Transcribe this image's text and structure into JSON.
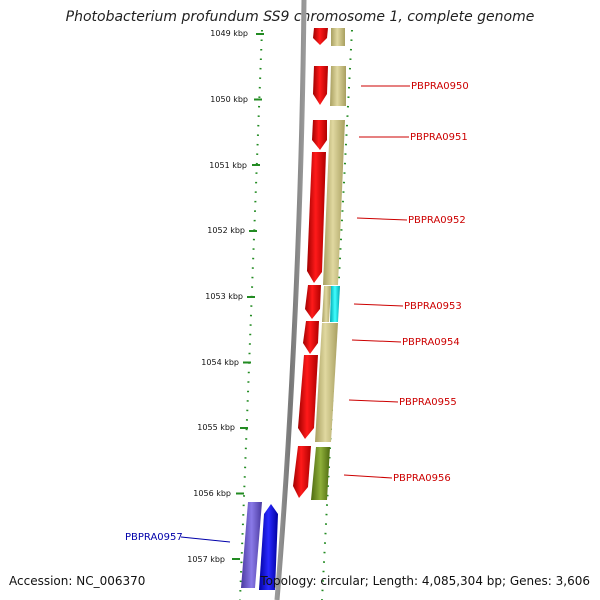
{
  "title": "Photobacterium profundum SS9 chromosome 1, complete genome",
  "footer": {
    "accession": "Accession: NC_006370",
    "summary": "Topology: circular; Length: 4,085,304 bp; Genes: 3,606"
  },
  "ruler": [
    "1049 kbp",
    "1050 kbp",
    "1051 kbp",
    "1052 kbp",
    "1053 kbp",
    "1054 kbp",
    "1055 kbp",
    "1056 kbp",
    "1057 kbp"
  ],
  "gene_labels": [
    {
      "text": "PBPRA0950",
      "color": "#cc0000"
    },
    {
      "text": "PBPRA0951",
      "color": "#cc0000"
    },
    {
      "text": "PBPRA0952",
      "color": "#cc0000"
    },
    {
      "text": "PBPRA0953",
      "color": "#cc0000"
    },
    {
      "text": "PBPRA0954",
      "color": "#cc0000"
    },
    {
      "text": "PBPRA0955",
      "color": "#cc0000"
    },
    {
      "text": "PBPRA0956",
      "color": "#cc0000"
    },
    {
      "text": "PBPRA0957",
      "color": "#0000aa"
    }
  ],
  "colors": {
    "forward_gene": "#ee0000",
    "forward_feature": "#c8bf80",
    "trna_feature": "#00d8e0",
    "green_feature": "#6b8e23",
    "reverse_gene": "#0000ee",
    "reverse_feature": "#6a5acd",
    "backbone": "#888888",
    "tick": "#228b22"
  }
}
